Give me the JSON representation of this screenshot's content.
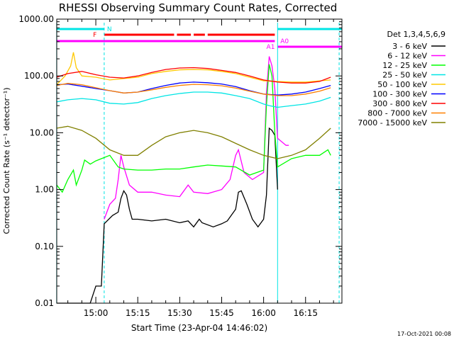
{
  "chart_data": {
    "type": "line",
    "title": "RHESSI Observing Summary Count Rates, Corrected",
    "xlabel": "Start Time (23-Apr-04 14:46:02)",
    "ylabel": "Corrected Count Rate (s⁻¹ detector⁻¹)",
    "y_scale": "log",
    "ylim": [
      0.01,
      1000
    ],
    "xlim": [
      "14:46:02",
      "16:28"
    ],
    "x_ticks": [
      "15:00",
      "15:15",
      "15:30",
      "15:45",
      "16:00",
      "16:15"
    ],
    "y_ticks": [
      "0.01",
      "0.10",
      "1.00",
      "10.00",
      "100.00",
      "1000.00"
    ],
    "legend_title": "Det 1,3,4,5,6,9",
    "legend_position": "right",
    "footer": "17-Oct-2021 00:08",
    "flags": [
      {
        "label": "N",
        "color": "#00e5e5",
        "segments": [
          [
            "14:46",
            "15:03"
          ],
          [
            "16:05",
            "16:28"
          ]
        ]
      },
      {
        "label": "F",
        "color": "#ff0000",
        "segments": [
          [
            "15:03",
            "15:28"
          ],
          [
            "15:29",
            "15:34"
          ],
          [
            "15:35",
            "15:39"
          ],
          [
            "15:40",
            "16:04"
          ]
        ]
      },
      {
        "label": "A1",
        "color": "#ff00ff",
        "segments": [
          [
            "14:46",
            "16:04"
          ]
        ]
      },
      {
        "label": "A0",
        "color": "#ff00ff",
        "segments": [
          [
            "16:05",
            "16:28"
          ]
        ]
      }
    ],
    "vlines": [
      "14:46",
      "15:03",
      "16:05",
      "16:27"
    ],
    "series": [
      {
        "name": "3 - 6 keV",
        "color": "#000000",
        "points": [
          [
            "14:46",
            0.01
          ],
          [
            "14:58",
            0.01
          ],
          [
            "15:00",
            0.02
          ],
          [
            "15:02",
            0.02
          ],
          [
            "15:03",
            0.25
          ],
          [
            "15:06",
            0.35
          ],
          [
            "15:08",
            0.4
          ],
          [
            "15:09",
            0.7
          ],
          [
            "15:10",
            0.95
          ],
          [
            "15:11",
            0.8
          ],
          [
            "15:12",
            0.45
          ],
          [
            "15:13",
            0.3
          ],
          [
            "15:15",
            0.3
          ],
          [
            "15:20",
            0.28
          ],
          [
            "15:25",
            0.3
          ],
          [
            "15:30",
            0.26
          ],
          [
            "15:33",
            0.28
          ],
          [
            "15:35",
            0.22
          ],
          [
            "15:37",
            0.3
          ],
          [
            "15:38",
            0.26
          ],
          [
            "15:42",
            0.22
          ],
          [
            "15:45",
            0.25
          ],
          [
            "15:47",
            0.28
          ],
          [
            "15:50",
            0.45
          ],
          [
            "15:51",
            0.9
          ],
          [
            "15:52",
            0.95
          ],
          [
            "15:54",
            0.55
          ],
          [
            "15:56",
            0.3
          ],
          [
            "15:58",
            0.22
          ],
          [
            "16:00",
            0.3
          ],
          [
            "16:01",
            0.8
          ],
          [
            "16:02",
            12
          ],
          [
            "16:03",
            11
          ],
          [
            "16:04",
            9
          ],
          [
            "16:05",
            1
          ]
        ]
      },
      {
        "name": "6 - 12 keV",
        "color": "#ff00ff",
        "points": [
          [
            "15:03",
            0.3
          ],
          [
            "15:05",
            0.55
          ],
          [
            "15:07",
            0.7
          ],
          [
            "15:08",
            1.5
          ],
          [
            "15:09",
            4
          ],
          [
            "15:10",
            2.5
          ],
          [
            "15:12",
            1.2
          ],
          [
            "15:15",
            0.9
          ],
          [
            "15:20",
            0.9
          ],
          [
            "15:25",
            0.8
          ],
          [
            "15:30",
            0.75
          ],
          [
            "15:33",
            1.2
          ],
          [
            "15:35",
            0.9
          ],
          [
            "15:40",
            0.85
          ],
          [
            "15:45",
            1
          ],
          [
            "15:48",
            1.5
          ],
          [
            "15:50",
            4
          ],
          [
            "15:51",
            5
          ],
          [
            "15:53",
            2
          ],
          [
            "15:56",
            1.5
          ],
          [
            "16:00",
            2
          ],
          [
            "16:01",
            50
          ],
          [
            "16:02",
            220
          ],
          [
            "16:03",
            150
          ],
          [
            "16:04",
            60
          ],
          [
            "16:05",
            8
          ],
          [
            "16:08",
            6
          ],
          [
            "16:09",
            6
          ]
        ]
      },
      {
        "name": "12 - 25 keV",
        "color": "#00ff00",
        "points": [
          [
            "14:46",
            1.2
          ],
          [
            "14:48",
            0.9
          ],
          [
            "14:50",
            1.5
          ],
          [
            "14:52",
            2.2
          ],
          [
            "14:53",
            1.2
          ],
          [
            "14:55",
            2.2
          ],
          [
            "14:56",
            3.3
          ],
          [
            "14:58",
            2.8
          ],
          [
            "15:00",
            3.2
          ],
          [
            "15:02",
            3.5
          ],
          [
            "15:05",
            4
          ],
          [
            "15:08",
            2.5
          ],
          [
            "15:10",
            2.3
          ],
          [
            "15:15",
            2.2
          ],
          [
            "15:20",
            2.2
          ],
          [
            "15:25",
            2.3
          ],
          [
            "15:30",
            2.3
          ],
          [
            "15:35",
            2.5
          ],
          [
            "15:40",
            2.7
          ],
          [
            "15:45",
            2.6
          ],
          [
            "15:50",
            2.5
          ],
          [
            "15:55",
            1.8
          ],
          [
            "16:00",
            2.2
          ],
          [
            "16:01",
            30
          ],
          [
            "16:02",
            160
          ],
          [
            "16:03",
            100
          ],
          [
            "16:04",
            10
          ],
          [
            "16:05",
            2.5
          ],
          [
            "16:10",
            3.5
          ],
          [
            "16:15",
            4
          ],
          [
            "16:20",
            4
          ],
          [
            "16:23",
            5
          ],
          [
            "16:24",
            4
          ]
        ]
      },
      {
        "name": "25 - 50 keV",
        "color": "#00e5e5",
        "points": [
          [
            "14:46",
            35
          ],
          [
            "14:50",
            38
          ],
          [
            "14:55",
            40
          ],
          [
            "15:00",
            38
          ],
          [
            "15:05",
            33
          ],
          [
            "15:10",
            32
          ],
          [
            "15:15",
            34
          ],
          [
            "15:20",
            40
          ],
          [
            "15:25",
            45
          ],
          [
            "15:30",
            49
          ],
          [
            "15:35",
            52
          ],
          [
            "15:40",
            52
          ],
          [
            "15:45",
            50
          ],
          [
            "15:50",
            45
          ],
          [
            "15:55",
            40
          ],
          [
            "16:00",
            32
          ],
          [
            "16:02",
            30
          ],
          [
            "16:05",
            28
          ],
          [
            "16:10",
            30
          ],
          [
            "16:15",
            32
          ],
          [
            "16:20",
            36
          ],
          [
            "16:24",
            42
          ]
        ]
      },
      {
        "name": "50 - 100 keV",
        "color": "#ffc800",
        "points": [
          [
            "14:46",
            70
          ],
          [
            "14:49",
            100
          ],
          [
            "14:51",
            150
          ],
          [
            "14:52",
            260
          ],
          [
            "14:53",
            140
          ],
          [
            "14:55",
            100
          ],
          [
            "15:00",
            95
          ],
          [
            "15:05",
            85
          ],
          [
            "15:10",
            90
          ],
          [
            "15:15",
            95
          ],
          [
            "15:20",
            110
          ],
          [
            "15:25",
            120
          ],
          [
            "15:30",
            128
          ],
          [
            "15:35",
            130
          ],
          [
            "15:40",
            128
          ],
          [
            "15:45",
            120
          ],
          [
            "15:50",
            110
          ],
          [
            "15:55",
            95
          ],
          [
            "16:00",
            82
          ],
          [
            "16:05",
            80
          ],
          [
            "16:10",
            78
          ],
          [
            "16:15",
            78
          ],
          [
            "16:20",
            82
          ],
          [
            "16:24",
            85
          ]
        ]
      },
      {
        "name": "100 - 300 keV",
        "color": "#0000ff",
        "points": [
          [
            "14:46",
            70
          ],
          [
            "14:50",
            72
          ],
          [
            "14:55",
            66
          ],
          [
            "15:00",
            60
          ],
          [
            "15:05",
            55
          ],
          [
            "15:10",
            50
          ],
          [
            "15:15",
            52
          ],
          [
            "15:20",
            60
          ],
          [
            "15:25",
            68
          ],
          [
            "15:30",
            75
          ],
          [
            "15:35",
            78
          ],
          [
            "15:40",
            76
          ],
          [
            "15:45",
            72
          ],
          [
            "15:50",
            65
          ],
          [
            "15:55",
            55
          ],
          [
            "16:00",
            48
          ],
          [
            "16:05",
            46
          ],
          [
            "16:10",
            48
          ],
          [
            "16:15",
            52
          ],
          [
            "16:20",
            60
          ],
          [
            "16:24",
            68
          ]
        ]
      },
      {
        "name": "300 - 800 keV",
        "color": "#ff0000",
        "points": [
          [
            "14:46",
            95
          ],
          [
            "14:50",
            110
          ],
          [
            "14:55",
            120
          ],
          [
            "15:00",
            105
          ],
          [
            "15:05",
            95
          ],
          [
            "15:10",
            92
          ],
          [
            "15:15",
            100
          ],
          [
            "15:20",
            115
          ],
          [
            "15:25",
            130
          ],
          [
            "15:30",
            138
          ],
          [
            "15:35",
            140
          ],
          [
            "15:40",
            135
          ],
          [
            "15:45",
            125
          ],
          [
            "15:50",
            115
          ],
          [
            "15:55",
            100
          ],
          [
            "16:00",
            85
          ],
          [
            "16:05",
            78
          ],
          [
            "16:10",
            75
          ],
          [
            "16:15",
            75
          ],
          [
            "16:20",
            80
          ],
          [
            "16:24",
            95
          ]
        ]
      },
      {
        "name": "800 - 7000 keV",
        "color": "#ff8000",
        "points": [
          [
            "14:46",
            68
          ],
          [
            "14:50",
            74
          ],
          [
            "14:55",
            70
          ],
          [
            "15:00",
            62
          ],
          [
            "15:05",
            55
          ],
          [
            "15:10",
            50
          ],
          [
            "15:15",
            52
          ],
          [
            "15:20",
            57
          ],
          [
            "15:25",
            63
          ],
          [
            "15:30",
            68
          ],
          [
            "15:35",
            71
          ],
          [
            "15:40",
            70
          ],
          [
            "15:45",
            67
          ],
          [
            "15:50",
            61
          ],
          [
            "15:55",
            54
          ],
          [
            "16:00",
            48
          ],
          [
            "16:05",
            45
          ],
          [
            "16:10",
            45
          ],
          [
            "16:15",
            48
          ],
          [
            "16:20",
            54
          ],
          [
            "16:24",
            62
          ]
        ]
      },
      {
        "name": "7000 - 15000 keV",
        "color": "#808000",
        "points": [
          [
            "14:46",
            12
          ],
          [
            "14:50",
            13
          ],
          [
            "14:55",
            11
          ],
          [
            "15:00",
            8
          ],
          [
            "15:05",
            5
          ],
          [
            "15:10",
            4
          ],
          [
            "15:15",
            4
          ],
          [
            "15:20",
            6
          ],
          [
            "15:25",
            8.5
          ],
          [
            "15:30",
            10
          ],
          [
            "15:35",
            11
          ],
          [
            "15:40",
            10
          ],
          [
            "15:45",
            8.5
          ],
          [
            "15:50",
            6.5
          ],
          [
            "15:55",
            5
          ],
          [
            "16:00",
            4
          ],
          [
            "16:05",
            3.5
          ],
          [
            "16:10",
            4
          ],
          [
            "16:15",
            5
          ],
          [
            "16:20",
            8
          ],
          [
            "16:24",
            12
          ]
        ]
      }
    ]
  }
}
